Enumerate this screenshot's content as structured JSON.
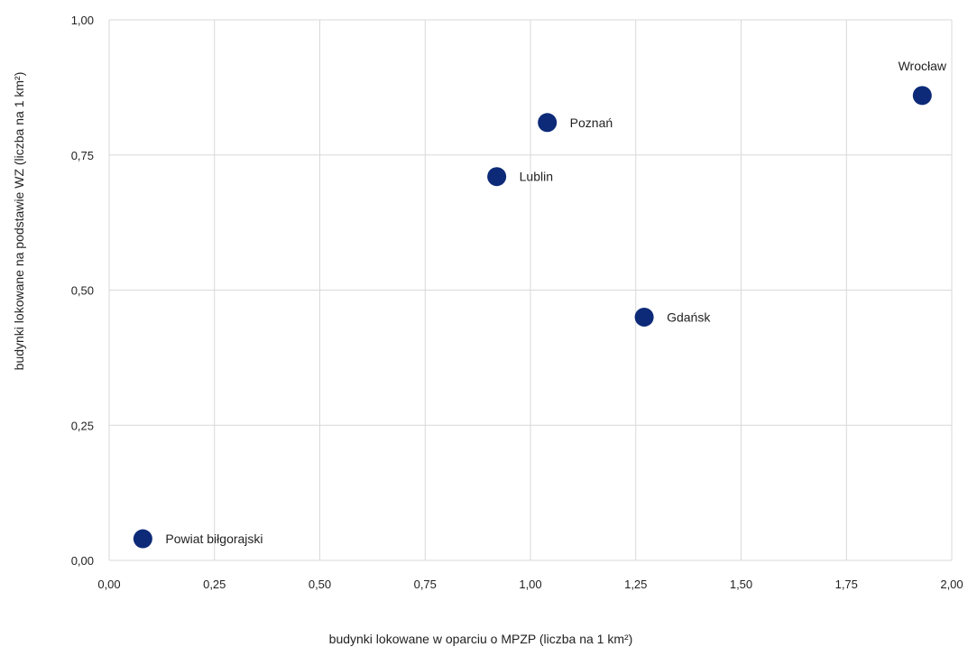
{
  "chart_data": {
    "type": "scatter",
    "title": "",
    "xlabel": "budynki lokowane w oparciu o MPZP (liczba na 1 km²)",
    "ylabel": "budynki lokowane na podstawie WZ (liczba na 1 km²)",
    "xlim": [
      0,
      2
    ],
    "ylim": [
      0,
      1
    ],
    "grid": true,
    "marker_color": "#0d2a78",
    "x_ticks": [
      "0,00",
      "0,25",
      "0,50",
      "0,75",
      "1,00",
      "1,25",
      "1,50",
      "1,75",
      "2,00"
    ],
    "y_ticks": [
      "0,00",
      "0,25",
      "0,50",
      "0,75",
      "1,00"
    ],
    "points": [
      {
        "label": "Powiat biłgorajski",
        "x": 0.08,
        "y": 0.04
      },
      {
        "label": "Lublin",
        "x": 0.92,
        "y": 0.71
      },
      {
        "label": "Poznań",
        "x": 1.04,
        "y": 0.81
      },
      {
        "label": "Gdańsk",
        "x": 1.27,
        "y": 0.45
      },
      {
        "label": "Wrocław",
        "x": 1.93,
        "y": 0.86
      }
    ]
  }
}
